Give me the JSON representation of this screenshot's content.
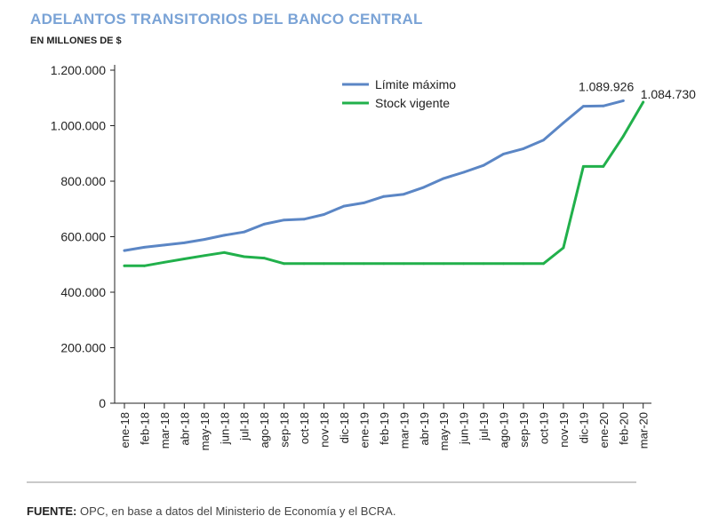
{
  "header": {
    "title": "ADELANTOS TRANSITORIOS DEL BANCO CENTRAL",
    "subtitle": "EN MILLONES DE $"
  },
  "footer": {
    "source_label": "FUENTE:",
    "source_text": " OPC, en base a datos del Ministerio de Economía y el BCRA."
  },
  "colors": {
    "limite": "#5b86c5",
    "stock": "#21b04b",
    "title": "#7aa3d6"
  },
  "chart_data": {
    "type": "line",
    "title": "ADELANTOS TRANSITORIOS DEL BANCO CENTRAL",
    "ylabel": "EN MILLONES DE $",
    "ylim": [
      0,
      1200000
    ],
    "yticks": [
      0,
      200000,
      400000,
      600000,
      800000,
      1000000,
      1200000
    ],
    "ytick_labels": [
      "0",
      "200.000",
      "400.000",
      "600.000",
      "800.000",
      "1.000.000",
      "1.200.000"
    ],
    "categories": [
      "ene-18",
      "feb-18",
      "mar-18",
      "abr-18",
      "may-18",
      "jun-18",
      "jul-18",
      "ago-18",
      "sep-18",
      "oct-18",
      "nov-18",
      "dic-18",
      "ene-19",
      "feb-19",
      "mar-19",
      "abr-19",
      "may-19",
      "jun-19",
      "jul-19",
      "ago-19",
      "sep-19",
      "oct-19",
      "nov-19",
      "dic-19",
      "ene-20",
      "feb-20",
      "mar-20"
    ],
    "series": [
      {
        "name": "Límite máximo",
        "values": [
          550000,
          562000,
          570000,
          578000,
          590000,
          605000,
          617000,
          645000,
          660000,
          663000,
          680000,
          710000,
          722000,
          745000,
          753000,
          778000,
          810000,
          832000,
          857000,
          898000,
          917000,
          948000,
          1010000,
          1070000,
          1071000,
          1089926,
          null
        ]
      },
      {
        "name": "Stock vigente",
        "values": [
          495000,
          495000,
          508000,
          520000,
          532000,
          543000,
          528000,
          523000,
          503000,
          503000,
          503000,
          503000,
          503000,
          503000,
          503000,
          503000,
          503000,
          503000,
          503000,
          503000,
          503000,
          503000,
          560000,
          853000,
          853000,
          962000,
          1084730
        ]
      }
    ],
    "annotations": [
      {
        "text": "1.089.926",
        "series": "Límite máximo",
        "category": "feb-20"
      },
      {
        "text": "1.084.730",
        "series": "Stock vigente",
        "category": "mar-20"
      }
    ],
    "legend": "top-center"
  }
}
